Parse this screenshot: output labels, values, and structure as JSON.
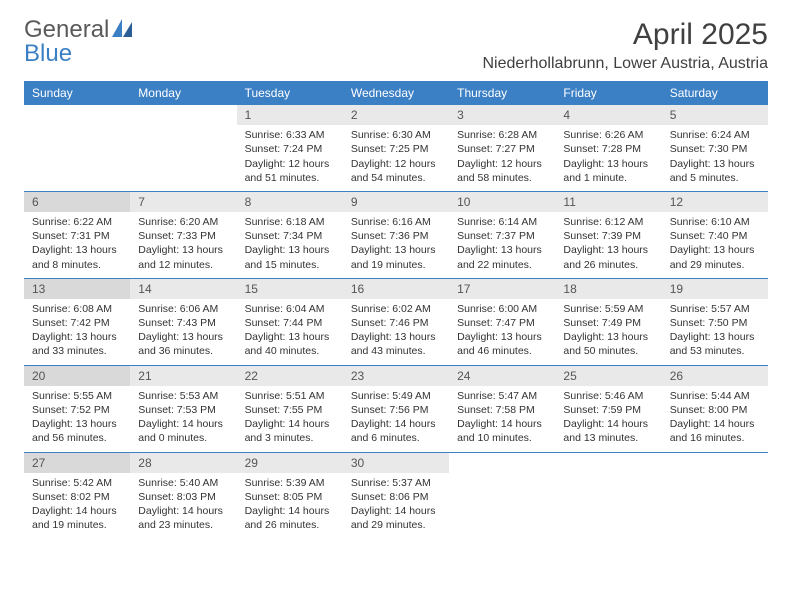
{
  "brand": {
    "part1": "General",
    "part2": "Blue"
  },
  "title": "April 2025",
  "location": "Niederhollabrunn, Lower Austria, Austria",
  "colors": {
    "header_bg": "#3b7fc4",
    "header_text": "#ffffff",
    "daynum_bg": "#e9e9e9",
    "daynum_bg_firstcol": "#d9d9d9",
    "week_border": "#3b7fc4",
    "page_bg": "#ffffff",
    "title_color": "#404040",
    "text_color": "#333333",
    "logo_gray": "#5a5a5a",
    "logo_blue": "#3b7fc4"
  },
  "typography": {
    "title_fontsize": 30,
    "location_fontsize": 16,
    "dayheader_fontsize": 12,
    "daynum_fontsize": 12,
    "cell_fontsize": 10.5,
    "font_family": "Arial"
  },
  "day_headers": [
    "Sunday",
    "Monday",
    "Tuesday",
    "Wednesday",
    "Thursday",
    "Friday",
    "Saturday"
  ],
  "weeks": [
    [
      null,
      null,
      {
        "n": "1",
        "sr": "Sunrise: 6:33 AM",
        "ss": "Sunset: 7:24 PM",
        "dl": "Daylight: 12 hours and 51 minutes."
      },
      {
        "n": "2",
        "sr": "Sunrise: 6:30 AM",
        "ss": "Sunset: 7:25 PM",
        "dl": "Daylight: 12 hours and 54 minutes."
      },
      {
        "n": "3",
        "sr": "Sunrise: 6:28 AM",
        "ss": "Sunset: 7:27 PM",
        "dl": "Daylight: 12 hours and 58 minutes."
      },
      {
        "n": "4",
        "sr": "Sunrise: 6:26 AM",
        "ss": "Sunset: 7:28 PM",
        "dl": "Daylight: 13 hours and 1 minute."
      },
      {
        "n": "5",
        "sr": "Sunrise: 6:24 AM",
        "ss": "Sunset: 7:30 PM",
        "dl": "Daylight: 13 hours and 5 minutes."
      }
    ],
    [
      {
        "n": "6",
        "sr": "Sunrise: 6:22 AM",
        "ss": "Sunset: 7:31 PM",
        "dl": "Daylight: 13 hours and 8 minutes."
      },
      {
        "n": "7",
        "sr": "Sunrise: 6:20 AM",
        "ss": "Sunset: 7:33 PM",
        "dl": "Daylight: 13 hours and 12 minutes."
      },
      {
        "n": "8",
        "sr": "Sunrise: 6:18 AM",
        "ss": "Sunset: 7:34 PM",
        "dl": "Daylight: 13 hours and 15 minutes."
      },
      {
        "n": "9",
        "sr": "Sunrise: 6:16 AM",
        "ss": "Sunset: 7:36 PM",
        "dl": "Daylight: 13 hours and 19 minutes."
      },
      {
        "n": "10",
        "sr": "Sunrise: 6:14 AM",
        "ss": "Sunset: 7:37 PM",
        "dl": "Daylight: 13 hours and 22 minutes."
      },
      {
        "n": "11",
        "sr": "Sunrise: 6:12 AM",
        "ss": "Sunset: 7:39 PM",
        "dl": "Daylight: 13 hours and 26 minutes."
      },
      {
        "n": "12",
        "sr": "Sunrise: 6:10 AM",
        "ss": "Sunset: 7:40 PM",
        "dl": "Daylight: 13 hours and 29 minutes."
      }
    ],
    [
      {
        "n": "13",
        "sr": "Sunrise: 6:08 AM",
        "ss": "Sunset: 7:42 PM",
        "dl": "Daylight: 13 hours and 33 minutes."
      },
      {
        "n": "14",
        "sr": "Sunrise: 6:06 AM",
        "ss": "Sunset: 7:43 PM",
        "dl": "Daylight: 13 hours and 36 minutes."
      },
      {
        "n": "15",
        "sr": "Sunrise: 6:04 AM",
        "ss": "Sunset: 7:44 PM",
        "dl": "Daylight: 13 hours and 40 minutes."
      },
      {
        "n": "16",
        "sr": "Sunrise: 6:02 AM",
        "ss": "Sunset: 7:46 PM",
        "dl": "Daylight: 13 hours and 43 minutes."
      },
      {
        "n": "17",
        "sr": "Sunrise: 6:00 AM",
        "ss": "Sunset: 7:47 PM",
        "dl": "Daylight: 13 hours and 46 minutes."
      },
      {
        "n": "18",
        "sr": "Sunrise: 5:59 AM",
        "ss": "Sunset: 7:49 PM",
        "dl": "Daylight: 13 hours and 50 minutes."
      },
      {
        "n": "19",
        "sr": "Sunrise: 5:57 AM",
        "ss": "Sunset: 7:50 PM",
        "dl": "Daylight: 13 hours and 53 minutes."
      }
    ],
    [
      {
        "n": "20",
        "sr": "Sunrise: 5:55 AM",
        "ss": "Sunset: 7:52 PM",
        "dl": "Daylight: 13 hours and 56 minutes."
      },
      {
        "n": "21",
        "sr": "Sunrise: 5:53 AM",
        "ss": "Sunset: 7:53 PM",
        "dl": "Daylight: 14 hours and 0 minutes."
      },
      {
        "n": "22",
        "sr": "Sunrise: 5:51 AM",
        "ss": "Sunset: 7:55 PM",
        "dl": "Daylight: 14 hours and 3 minutes."
      },
      {
        "n": "23",
        "sr": "Sunrise: 5:49 AM",
        "ss": "Sunset: 7:56 PM",
        "dl": "Daylight: 14 hours and 6 minutes."
      },
      {
        "n": "24",
        "sr": "Sunrise: 5:47 AM",
        "ss": "Sunset: 7:58 PM",
        "dl": "Daylight: 14 hours and 10 minutes."
      },
      {
        "n": "25",
        "sr": "Sunrise: 5:46 AM",
        "ss": "Sunset: 7:59 PM",
        "dl": "Daylight: 14 hours and 13 minutes."
      },
      {
        "n": "26",
        "sr": "Sunrise: 5:44 AM",
        "ss": "Sunset: 8:00 PM",
        "dl": "Daylight: 14 hours and 16 minutes."
      }
    ],
    [
      {
        "n": "27",
        "sr": "Sunrise: 5:42 AM",
        "ss": "Sunset: 8:02 PM",
        "dl": "Daylight: 14 hours and 19 minutes."
      },
      {
        "n": "28",
        "sr": "Sunrise: 5:40 AM",
        "ss": "Sunset: 8:03 PM",
        "dl": "Daylight: 14 hours and 23 minutes."
      },
      {
        "n": "29",
        "sr": "Sunrise: 5:39 AM",
        "ss": "Sunset: 8:05 PM",
        "dl": "Daylight: 14 hours and 26 minutes."
      },
      {
        "n": "30",
        "sr": "Sunrise: 5:37 AM",
        "ss": "Sunset: 8:06 PM",
        "dl": "Daylight: 14 hours and 29 minutes."
      },
      null,
      null,
      null
    ]
  ]
}
